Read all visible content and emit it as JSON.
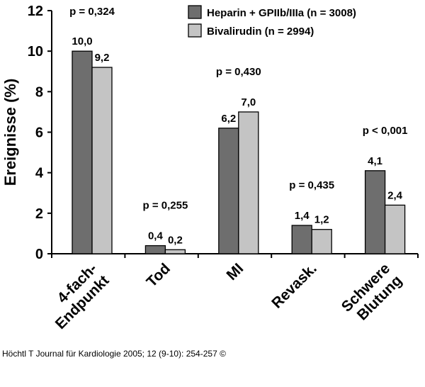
{
  "chart_data": {
    "type": "bar",
    "ylabel": "Ereignisse (%)",
    "ylim": [
      0,
      12
    ],
    "yticks": [
      0,
      2,
      4,
      6,
      8,
      10,
      12
    ],
    "grid": false,
    "legend_position": "top-right",
    "categories": [
      [
        "4-fach-",
        "Endpunkt"
      ],
      [
        "Tod"
      ],
      [
        "MI"
      ],
      [
        "Revask."
      ],
      [
        "Schwere",
        "Blutung"
      ]
    ],
    "series": [
      {
        "name": "Heparin + GPIIb/IIIa (n = 3008)",
        "color": "#6e6e6e",
        "values": [
          10.0,
          0.4,
          6.2,
          1.4,
          4.1
        ],
        "labels": [
          "10,0",
          "0,4",
          "6,2",
          "1,4",
          "4,1"
        ]
      },
      {
        "name": "Bivalirudin (n = 2994)",
        "color": "#c4c4c4",
        "values": [
          9.2,
          0.2,
          7.0,
          1.2,
          2.4
        ],
        "labels": [
          "9,2",
          "0,2",
          "7,0",
          "1,2",
          "2,4"
        ]
      }
    ],
    "annotations": [
      "p = 0,324",
      "p = 0,255",
      "p = 0,430",
      "p = 0,435",
      "p < 0,001"
    ]
  },
  "source": "Höchtl T Journal für Kardiologie 2005; 12 (9-10): 254-257 ©"
}
